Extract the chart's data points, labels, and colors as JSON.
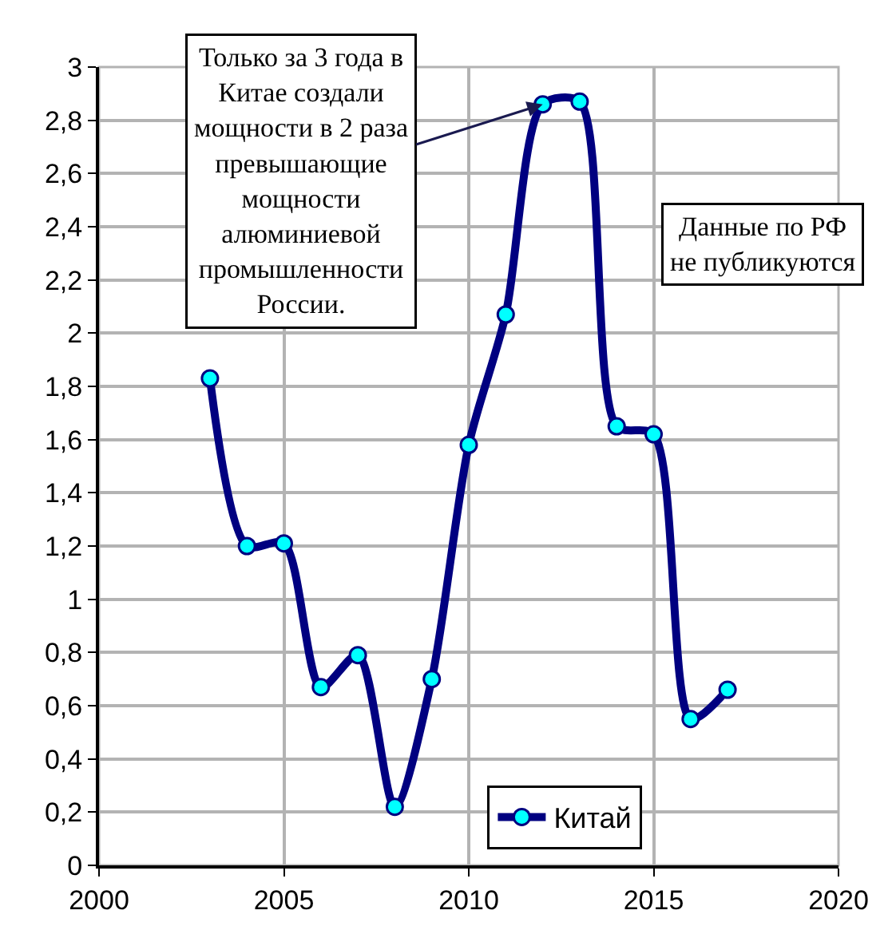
{
  "chart_data": {
    "type": "line",
    "x": [
      2003,
      2004,
      2005,
      2006,
      2007,
      2008,
      2009,
      2010,
      2011,
      2012,
      2013,
      2014,
      2015,
      2016,
      2017
    ],
    "series": [
      {
        "name": "Китай",
        "color": "#000080",
        "values": [
          1.83,
          1.2,
          1.21,
          0.67,
          0.79,
          0.22,
          0.7,
          1.58,
          2.07,
          2.86,
          2.87,
          1.65,
          1.62,
          0.55,
          0.66
        ]
      }
    ],
    "xlim": [
      2000,
      2020
    ],
    "xticks": [
      2000,
      2005,
      2010,
      2015,
      2020
    ],
    "ylim": [
      0,
      3
    ],
    "yticks": [
      0,
      {
        "value": 0.2,
        "label": "0,2"
      },
      {
        "value": 0.4,
        "label": "0,4"
      },
      {
        "value": 0.6,
        "label": "0,6"
      },
      {
        "value": 0.8,
        "label": "0,8"
      },
      1,
      {
        "value": 1.2,
        "label": "1,2"
      },
      {
        "value": 1.4,
        "label": "1,4"
      },
      {
        "value": 1.6,
        "label": "1,6"
      },
      {
        "value": 1.8,
        "label": "1,8"
      },
      2,
      {
        "value": 2.2,
        "label": "2,2"
      },
      {
        "value": 2.4,
        "label": "2,4"
      },
      {
        "value": 2.6,
        "label": "2,6"
      },
      {
        "value": 2.8,
        "label": "2,8"
      },
      3
    ],
    "annotations": [
      {
        "text": "Только за 3 года в\nКитае создали\nмощности в 2 раза\nпревышающие\nмощности\nалюминиевой\nпромышленности\nРоссии.",
        "x": 2012,
        "y": 2.86
      },
      "Данные по РФ\nне публикуются"
    ],
    "grid": true,
    "legend": "bottom",
    "marker": "circle",
    "line_style": "solid"
  }
}
